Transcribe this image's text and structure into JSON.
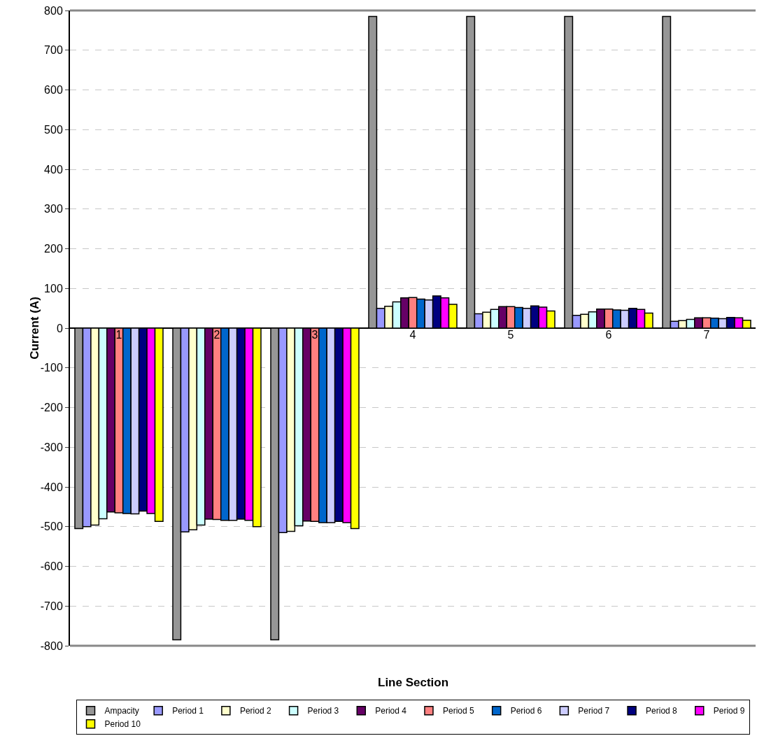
{
  "chart_data": {
    "type": "bar",
    "xlabel": "Line Section",
    "ylabel": "Current (A)",
    "categories": [
      "1",
      "2",
      "3",
      "4",
      "5",
      "6",
      "7"
    ],
    "series": [
      {
        "name": "Ampacity",
        "color": "#969696",
        "values": [
          -505,
          -785,
          -785,
          785,
          785,
          785,
          785
        ]
      },
      {
        "name": "Period 1",
        "color": "#9999ff",
        "values": [
          -500,
          -513,
          -515,
          50,
          36,
          32,
          17
        ]
      },
      {
        "name": "Period 2",
        "color": "#ffffcc",
        "values": [
          -496,
          -508,
          -512,
          55,
          40,
          35,
          19
        ]
      },
      {
        "name": "Period 3",
        "color": "#ccffff",
        "values": [
          -480,
          -496,
          -498,
          66,
          47,
          41,
          22
        ]
      },
      {
        "name": "Period 4",
        "color": "#660066",
        "values": [
          -463,
          -481,
          -486,
          76,
          54,
          48,
          26
        ]
      },
      {
        "name": "Period 5",
        "color": "#ff8080",
        "values": [
          -465,
          -482,
          -487,
          77,
          54,
          48,
          26
        ]
      },
      {
        "name": "Period 6",
        "color": "#0066cc",
        "values": [
          -467,
          -484,
          -490,
          73,
          52,
          46,
          25
        ]
      },
      {
        "name": "Period 7",
        "color": "#ccccff",
        "values": [
          -468,
          -484,
          -490,
          71,
          50,
          45,
          24
        ]
      },
      {
        "name": "Period 8",
        "color": "#000080",
        "values": [
          -461,
          -481,
          -487,
          81,
          56,
          50,
          27
        ]
      },
      {
        "name": "Period 9",
        "color": "#ff00ff",
        "values": [
          -467,
          -484,
          -490,
          76,
          53,
          47,
          26
        ]
      },
      {
        "name": "Period 10",
        "color": "#ffff00",
        "values": [
          -487,
          -500,
          -505,
          60,
          43,
          38,
          20
        ]
      }
    ],
    "ylim": [
      -800,
      800
    ],
    "yticks": [
      -800,
      -700,
      -600,
      -500,
      -400,
      -300,
      -200,
      -100,
      0,
      100,
      200,
      300,
      400,
      500,
      600,
      700,
      800
    ],
    "grid": "y",
    "legend": "bottom"
  }
}
